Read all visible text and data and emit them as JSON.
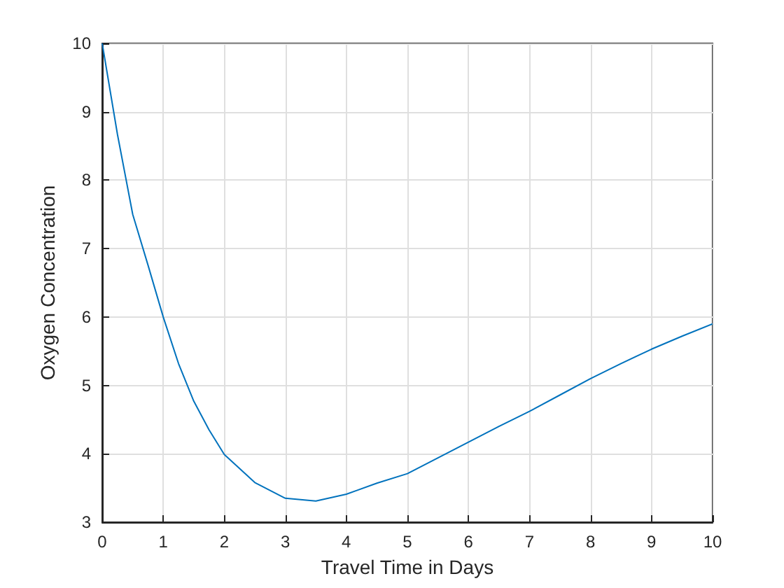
{
  "chart_data": {
    "type": "line",
    "xlabel": "Travel Time in Days",
    "ylabel": "Oxygen Concentration",
    "x": [
      0,
      0.25,
      0.5,
      0.75,
      1,
      1.25,
      1.5,
      1.75,
      2,
      2.5,
      3,
      3.5,
      4,
      4.5,
      5,
      5.5,
      6,
      6.5,
      7,
      7.5,
      8,
      8.5,
      9,
      9.5,
      10
    ],
    "series": [
      {
        "color": "#0072bd",
        "values": [
          10,
          8.67,
          7.5,
          6.76,
          6.0,
          5.32,
          4.77,
          4.35,
          3.99,
          3.58,
          3.35,
          3.31,
          3.41,
          3.57,
          3.71,
          3.94,
          4.17,
          4.4,
          4.62,
          4.86,
          5.1,
          5.32,
          5.53,
          5.72,
          5.9
        ]
      }
    ],
    "xlim": [
      0,
      10
    ],
    "ylim": [
      3,
      10
    ],
    "xticks": [
      0,
      1,
      2,
      3,
      4,
      5,
      6,
      7,
      8,
      9,
      10
    ],
    "yticks": [
      3,
      4,
      5,
      6,
      7,
      8,
      9,
      10
    ],
    "grid": true,
    "marker": "none",
    "line_style": "solid"
  }
}
